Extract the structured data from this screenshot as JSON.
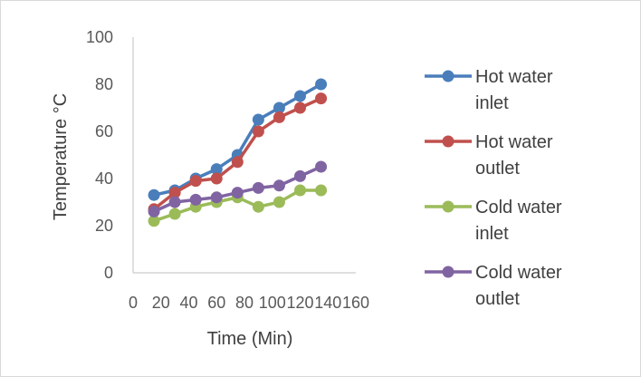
{
  "chart_data": {
    "type": "line",
    "xlabel": "Time (Min)",
    "ylabel": "Temperature °C",
    "xlim": [
      0,
      160
    ],
    "ylim": [
      0,
      100
    ],
    "xticks": [
      0,
      20,
      40,
      60,
      80,
      100,
      120,
      140,
      160
    ],
    "yticks": [
      0,
      20,
      40,
      60,
      80,
      100
    ],
    "grid": false,
    "legend_position": "right",
    "x": [
      15,
      30,
      45,
      60,
      75,
      90,
      105,
      120,
      135
    ],
    "series": [
      {
        "name_lines": [
          "Hot water",
          "inlet"
        ],
        "name": "Hot water inlet",
        "color": "#4a7ebb",
        "values": [
          33,
          35,
          40,
          44,
          50,
          65,
          70,
          75,
          80
        ]
      },
      {
        "name_lines": [
          "Hot water",
          "outlet"
        ],
        "name": "Hot water outlet",
        "color": "#c0504d",
        "values": [
          27,
          34,
          39,
          40,
          47,
          60,
          66,
          70,
          74
        ]
      },
      {
        "name_lines": [
          "Cold water",
          "inlet"
        ],
        "name": "Cold water inlet",
        "color": "#9bbb59",
        "values": [
          22,
          25,
          28,
          30,
          32,
          28,
          30,
          35,
          35
        ]
      },
      {
        "name_lines": [
          "Cold water",
          "outlet"
        ],
        "name": "Cold water outlet",
        "color": "#8064a2",
        "values": [
          26,
          30,
          31,
          32,
          34,
          36,
          37,
          41,
          45
        ]
      }
    ]
  }
}
